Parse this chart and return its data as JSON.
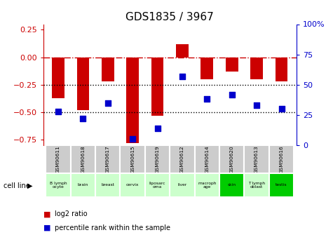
{
  "title": "GDS1835 / 3967",
  "samples": [
    "GSM90611",
    "GSM90618",
    "GSM90617",
    "GSM90615",
    "GSM90619",
    "GSM90612",
    "GSM90614",
    "GSM90620",
    "GSM90613",
    "GSM90616"
  ],
  "cell_lines": [
    "B lymph\nocyte",
    "brain",
    "breast",
    "cervix",
    "liposarc\noma",
    "liver",
    "macroph\nage",
    "skin",
    "T lymph\noblast",
    "testis"
  ],
  "cell_line_colors": [
    "#ccffcc",
    "#ccffcc",
    "#ccffcc",
    "#ccffcc",
    "#ccffcc",
    "#ccffcc",
    "#ccffcc",
    "#00cc00",
    "#ccffcc",
    "#00cc00"
  ],
  "log2_ratio": [
    -0.37,
    -0.48,
    -0.22,
    -0.78,
    -0.53,
    0.12,
    -0.2,
    -0.13,
    -0.2,
    -0.22
  ],
  "percentile_rank": [
    28,
    22,
    35,
    5,
    14,
    57,
    38,
    42,
    33,
    30
  ],
  "ylim_left": [
    -0.8,
    0.3
  ],
  "ylim_right": [
    0,
    100
  ],
  "yticks_left": [
    -0.75,
    -0.5,
    -0.25,
    0.0,
    0.25
  ],
  "yticks_right": [
    0,
    25,
    50,
    75,
    100
  ],
  "bar_color": "#cc0000",
  "dot_color": "#0000cc",
  "dashed_line_color": "#cc0000",
  "dotted_line_color": "#000000",
  "bg_color": "#ffffff",
  "bar_width": 0.5,
  "dot_size": 35,
  "legend_items": [
    "log2 ratio",
    "percentile rank within the sample"
  ],
  "gsm_box_color": "#cccccc",
  "gsm_box_edge": "#ffffff"
}
